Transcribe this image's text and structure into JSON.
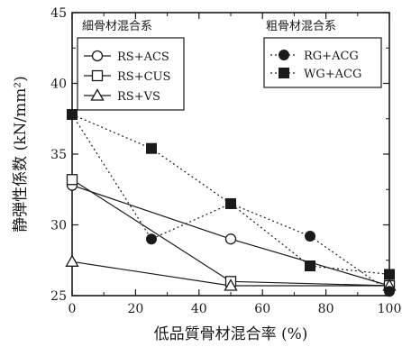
{
  "chart_data": {
    "type": "line",
    "xlabel": "低品質骨材混合率 (%)",
    "ylabel": "静弾性係数 (kN/mm²)",
    "xlim": [
      0,
      100
    ],
    "ylim": [
      25,
      45
    ],
    "x_ticks": [
      0,
      20,
      40,
      60,
      80,
      100
    ],
    "y_ticks": [
      25,
      30,
      35,
      40,
      45
    ],
    "legend_groups": [
      {
        "title": "細骨材混合系",
        "placement": "top-left",
        "series_names": [
          "RS+ACS",
          "RS+CUS",
          "RS+VS"
        ]
      },
      {
        "title": "粗骨材混合系",
        "placement": "top-right",
        "series_names": [
          "RG+ACG",
          "WG+ACG"
        ]
      }
    ],
    "series": [
      {
        "name": "RS+ACS",
        "marker": "open-circle",
        "line": "solid",
        "x": [
          0,
          50,
          100
        ],
        "y": [
          32.8,
          29.0,
          25.7
        ]
      },
      {
        "name": "RS+CUS",
        "marker": "open-square",
        "line": "solid",
        "x": [
          0,
          50,
          100
        ],
        "y": [
          33.2,
          26.0,
          25.7
        ]
      },
      {
        "name": "RS+VS",
        "marker": "open-triangle",
        "line": "solid",
        "x": [
          0,
          50,
          100
        ],
        "y": [
          27.4,
          25.7,
          25.7
        ]
      },
      {
        "name": "RG+ACG",
        "marker": "filled-circle",
        "line": "dotted",
        "x": [
          0,
          25,
          50,
          75,
          100
        ],
        "y": [
          37.8,
          29.0,
          31.5,
          29.2,
          25.3
        ]
      },
      {
        "name": "WG+ACG",
        "marker": "filled-square",
        "line": "dotted",
        "x": [
          0,
          25,
          50,
          75,
          100
        ],
        "y": [
          37.8,
          35.4,
          31.5,
          27.1,
          26.5
        ]
      }
    ]
  }
}
